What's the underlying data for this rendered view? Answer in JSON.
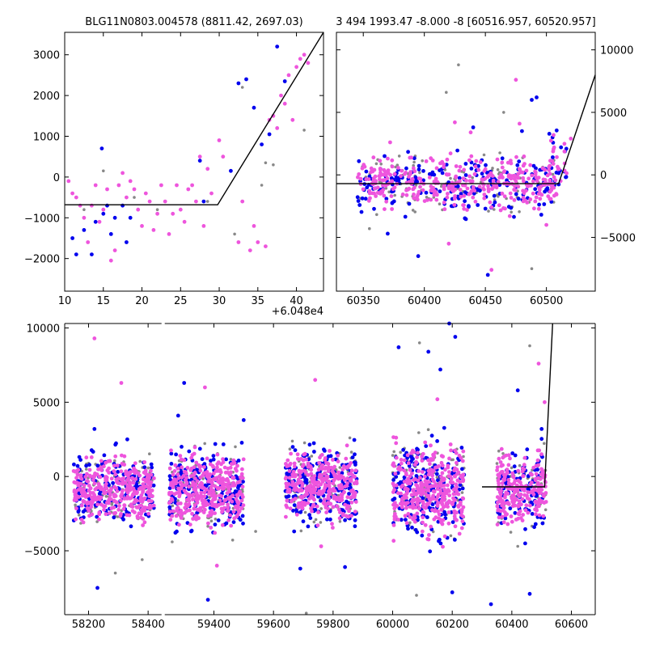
{
  "chart_data": [
    {
      "type": "scatter",
      "title": "BLG11N0803.004578 (8811.42, 2697.03)",
      "xlim": [
        10,
        43.5
      ],
      "ylim": [
        -2800,
        3550
      ],
      "x_offset_label": "+6.048e4",
      "x_ticks": [
        {
          "value": 10,
          "label": "10"
        },
        {
          "value": 15,
          "label": "15"
        },
        {
          "value": 20,
          "label": "20"
        },
        {
          "value": 25,
          "label": "25"
        },
        {
          "value": 30,
          "label": "30"
        },
        {
          "value": 35,
          "label": "35"
        },
        {
          "value": 40,
          "label": "40"
        }
      ],
      "y_ticks": [
        {
          "value": -2000,
          "label": "−2000"
        },
        {
          "value": -1000,
          "label": "−1000"
        },
        {
          "value": 0,
          "label": "0"
        },
        {
          "value": 1000,
          "label": "1000"
        },
        {
          "value": 2000,
          "label": "2000"
        },
        {
          "value": 3000,
          "label": "3000"
        }
      ],
      "model": {
        "x": [
          10,
          29.8,
          43.5
        ],
        "y": [
          -680,
          -680,
          3550
        ]
      },
      "series": [
        {
          "color": "#0000ee",
          "points": [
            [
              11,
              -1500
            ],
            [
              11.5,
              -1900
            ],
            [
              12.5,
              -1300
            ],
            [
              13.5,
              -1900
            ],
            [
              14,
              -1100
            ],
            [
              14.8,
              700
            ],
            [
              15,
              -900
            ],
            [
              15.5,
              -700
            ],
            [
              16,
              -1400
            ],
            [
              16.5,
              -1000
            ],
            [
              17.5,
              -700
            ],
            [
              18,
              -1600
            ],
            [
              18.5,
              -1000
            ],
            [
              27.5,
              400
            ],
            [
              28,
              -600
            ],
            [
              31.5,
              150
            ],
            [
              32.5,
              2300
            ],
            [
              33.5,
              2400
            ],
            [
              34.5,
              1700
            ],
            [
              35.5,
              800
            ],
            [
              36.5,
              1050
            ],
            [
              37.5,
              3200
            ],
            [
              38.5,
              2350
            ]
          ]
        },
        {
          "color": "#888888",
          "points": [
            [
              12.5,
              -800
            ],
            [
              15,
              150
            ],
            [
              19,
              -500
            ],
            [
              22,
              -800
            ],
            [
              28.5,
              -600
            ],
            [
              32,
              -1400
            ],
            [
              33,
              2200
            ],
            [
              35.5,
              -200
            ],
            [
              36,
              350
            ],
            [
              37,
              300
            ],
            [
              41,
              1150
            ]
          ]
        },
        {
          "color": "#ee55dd",
          "points": [
            [
              10.5,
              -100
            ],
            [
              11,
              -400
            ],
            [
              11.5,
              -500
            ],
            [
              12,
              -700
            ],
            [
              12.5,
              -1000
            ],
            [
              13,
              -1600
            ],
            [
              13.5,
              -700
            ],
            [
              14,
              -200
            ],
            [
              14.5,
              -1100
            ],
            [
              15,
              -800
            ],
            [
              15.5,
              -300
            ],
            [
              16,
              -2050
            ],
            [
              16.5,
              -1800
            ],
            [
              17,
              -200
            ],
            [
              17.5,
              100
            ],
            [
              18,
              -500
            ],
            [
              18.5,
              -100
            ],
            [
              19,
              -300
            ],
            [
              19.5,
              -800
            ],
            [
              20,
              -1200
            ],
            [
              20.5,
              -400
            ],
            [
              21,
              -600
            ],
            [
              21.5,
              -1300
            ],
            [
              22,
              -900
            ],
            [
              22.5,
              -200
            ],
            [
              23,
              -600
            ],
            [
              23.5,
              -1400
            ],
            [
              24,
              -900
            ],
            [
              24.5,
              -200
            ],
            [
              25,
              -800
            ],
            [
              25.5,
              -1100
            ],
            [
              26,
              -300
            ],
            [
              26.5,
              -200
            ],
            [
              27,
              -600
            ],
            [
              27.5,
              500
            ],
            [
              28,
              -1200
            ],
            [
              28.5,
              200
            ],
            [
              29,
              -400
            ],
            [
              30,
              900
            ],
            [
              30.5,
              500
            ],
            [
              32.5,
              -1600
            ],
            [
              33,
              -600
            ],
            [
              34,
              -1800
            ],
            [
              34.5,
              -1200
            ],
            [
              35,
              -1600
            ],
            [
              36,
              -1700
            ],
            [
              36.5,
              1400
            ],
            [
              37,
              1500
            ],
            [
              37.5,
              1200
            ],
            [
              38,
              2000
            ],
            [
              38.5,
              1800
            ],
            [
              39,
              2500
            ],
            [
              39.5,
              1400
            ],
            [
              40,
              2700
            ],
            [
              40.5,
              2900
            ],
            [
              41,
              3000
            ],
            [
              41.5,
              2800
            ]
          ]
        }
      ]
    },
    {
      "type": "scatter",
      "title": "3 494 1993.47 -8.000 -8 [60516.957, 60520.957]",
      "xlim": [
        60328,
        60540
      ],
      "ylim": [
        -9300,
        11400
      ],
      "x_ticks": [
        {
          "value": 60350,
          "label": "60350"
        },
        {
          "value": 60400,
          "label": "60400"
        },
        {
          "value": 60450,
          "label": "60450"
        },
        {
          "value": 60500,
          "label": "60500"
        }
      ],
      "y_ticks": [
        {
          "value": -5000,
          "label": "−5000"
        },
        {
          "value": 0,
          "label": "0"
        },
        {
          "value": 5000,
          "label": "5000"
        },
        {
          "value": 10000,
          "label": "10000"
        }
      ],
      "model": {
        "x": [
          60328,
          60510,
          60540
        ],
        "y": [
          -700,
          -700,
          8000
        ]
      },
      "series": [
        {
          "color": "#0000ee",
          "points": [
            [
              60395,
              -6500
            ],
            [
              60452,
              -8000
            ],
            [
              60370,
              -4700
            ],
            [
              60480,
              3500
            ],
            [
              60488,
              6000
            ],
            [
              60492,
              6200
            ],
            [
              60440,
              3800
            ],
            [
              60450,
              -2700
            ],
            [
              60512,
              2200
            ],
            [
              60505,
              3000
            ]
          ]
        },
        {
          "color": "#888888",
          "points": [
            [
              60428,
              8800
            ],
            [
              60418,
              6600
            ],
            [
              60355,
              -4300
            ],
            [
              60488,
              -7500
            ],
            [
              60465,
              5000
            ]
          ]
        },
        {
          "color": "#ee55dd",
          "points": [
            [
              60475,
              7600
            ],
            [
              60478,
              4100
            ],
            [
              60372,
              2600
            ],
            [
              60408,
              -1600
            ],
            [
              60425,
              4200
            ],
            [
              60435,
              -2800
            ],
            [
              60455,
              -7600
            ],
            [
              60500,
              -4000
            ],
            [
              60370,
              1300
            ],
            [
              60520,
              2900
            ],
            [
              60438,
              3400
            ],
            [
              60470,
              -3300
            ],
            [
              60420,
              -5500
            ]
          ]
        }
      ],
      "bands": [
        {
          "x_range": [
            60345,
            60510
          ],
          "y_center": -700,
          "y_spread": 1100,
          "counts": {
            "#888888": 120,
            "#0000ee": 200,
            "#ee55dd": 350
          }
        },
        {
          "x_range": [
            60502,
            60517
          ],
          "y_center": 800,
          "y_spread": 1400,
          "counts": {
            "#0000ee": 12,
            "#ee55dd": 16
          }
        }
      ]
    },
    {
      "type": "scatter",
      "xlim": [
        58120,
        60680
      ],
      "ylim": [
        -9300,
        10300
      ],
      "x_break": [
        58445,
        59235
      ],
      "x_ticks": [
        {
          "value": 58200,
          "label": "58200"
        },
        {
          "value": 58400,
          "label": "58400"
        },
        {
          "value": 59400,
          "label": "59400"
        },
        {
          "value": 59600,
          "label": "59600"
        },
        {
          "value": 59800,
          "label": "59800"
        },
        {
          "value": 60000,
          "label": "60000"
        },
        {
          "value": 60200,
          "label": "60200"
        },
        {
          "value": 60400,
          "label": "60400"
        },
        {
          "value": 60600,
          "label": "60600"
        }
      ],
      "y_ticks": [
        {
          "value": -5000,
          "label": "−5000"
        },
        {
          "value": 0,
          "label": "0"
        },
        {
          "value": 5000,
          "label": "5000"
        },
        {
          "value": 10000,
          "label": "10000"
        }
      ],
      "model": {
        "x": [
          60300,
          60510,
          60540
        ],
        "y": [
          -700,
          -700,
          11500
        ]
      },
      "series": [
        {
          "color": "#ee55dd",
          "points": [
            [
              58220,
              9300
            ],
            [
              58310,
              6300
            ],
            [
              59370,
              6000
            ],
            [
              59740,
              6500
            ],
            [
              60150,
              5200
            ],
            [
              60490,
              7600
            ],
            [
              60510,
              5000
            ],
            [
              59760,
              -4700
            ],
            [
              59410,
              -6000
            ]
          ]
        },
        {
          "color": "#0000ee",
          "points": [
            [
              58220,
              3200
            ],
            [
              58330,
              2500
            ],
            [
              59300,
              6300
            ],
            [
              59280,
              4100
            ],
            [
              59500,
              3800
            ],
            [
              60020,
              8700
            ],
            [
              60190,
              10300
            ],
            [
              60210,
              9400
            ],
            [
              60160,
              7200
            ],
            [
              60120,
              8400
            ],
            [
              60420,
              5800
            ],
            [
              60500,
              3200
            ],
            [
              58230,
              -7500
            ],
            [
              59380,
              -8300
            ],
            [
              59690,
              -6200
            ],
            [
              59840,
              -6100
            ],
            [
              60200,
              -7800
            ],
            [
              60330,
              -8600
            ],
            [
              60460,
              -7900
            ],
            [
              60480,
              -3200
            ]
          ]
        },
        {
          "color": "#888888",
          "points": [
            [
              60090,
              9000
            ],
            [
              60460,
              8800
            ],
            [
              58380,
              -5600
            ],
            [
              58290,
              -6500
            ],
            [
              59260,
              -4400
            ],
            [
              59540,
              -3700
            ],
            [
              60080,
              -8000
            ],
            [
              59710,
              -9200
            ],
            [
              60420,
              -4700
            ]
          ]
        }
      ],
      "bands": [
        {
          "x_range": [
            58150,
            58420
          ],
          "y_center": -900,
          "y_spread": 1200,
          "counts": {
            "#888888": 100,
            "#0000ee": 170,
            "#ee55dd": 330
          }
        },
        {
          "x_range": [
            59250,
            59500
          ],
          "y_center": -900,
          "y_spread": 1300,
          "counts": {
            "#888888": 110,
            "#0000ee": 180,
            "#ee55dd": 340
          }
        },
        {
          "x_range": [
            59640,
            59880
          ],
          "y_center": -600,
          "y_spread": 1300,
          "counts": {
            "#888888": 100,
            "#0000ee": 200,
            "#ee55dd": 320
          }
        },
        {
          "x_range": [
            60000,
            60240
          ],
          "y_center": -900,
          "y_spread": 1600,
          "counts": {
            "#888888": 100,
            "#0000ee": 200,
            "#ee55dd": 350
          }
        },
        {
          "x_range": [
            60350,
            60515
          ],
          "y_center": -900,
          "y_spread": 1300,
          "counts": {
            "#888888": 60,
            "#0000ee": 100,
            "#ee55dd": 220
          }
        }
      ]
    }
  ]
}
